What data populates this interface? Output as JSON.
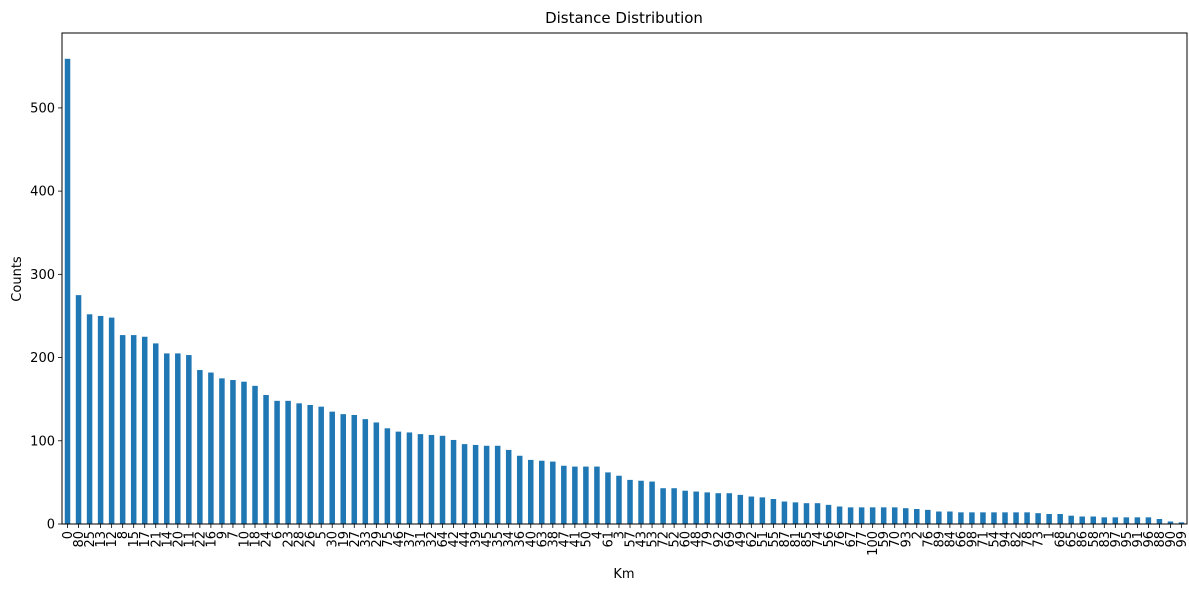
{
  "chart_data": {
    "type": "bar",
    "title": "Distance Distribution",
    "xlabel": "Km",
    "ylabel": "Counts",
    "ylim": [
      0,
      590
    ],
    "yticks": [
      0,
      100,
      200,
      300,
      400,
      500
    ],
    "grid": false,
    "legend": "none",
    "bar_color": "#1f77b4",
    "categories": [
      "0",
      "80",
      "25",
      "13",
      "12",
      "8",
      "15",
      "17",
      "21",
      "14",
      "20",
      "11",
      "22",
      "16",
      "9",
      "7",
      "10",
      "18",
      "24",
      "6",
      "23",
      "28",
      "26",
      "5",
      "30",
      "19",
      "27",
      "33",
      "29",
      "75",
      "46",
      "37",
      "31",
      "32",
      "64",
      "42",
      "44",
      "39",
      "45",
      "35",
      "34",
      "36",
      "40",
      "63",
      "38",
      "47",
      "41",
      "50",
      "4",
      "61",
      "3",
      "57",
      "43",
      "53",
      "72",
      "52",
      "60",
      "48",
      "79",
      "92",
      "69",
      "49",
      "62",
      "51",
      "55",
      "87",
      "81",
      "85",
      "74",
      "56",
      "76",
      "67",
      "77",
      "100",
      "59",
      "70",
      "93",
      "2",
      "76",
      "89",
      "84",
      "66",
      "98",
      "71",
      "54",
      "94",
      "82",
      "78",
      "73",
      "1",
      "68",
      "65",
      "86",
      "58",
      "83",
      "97",
      "95",
      "91",
      "96",
      "88",
      "90",
      "99"
    ],
    "values": [
      559,
      275,
      252,
      250,
      248,
      227,
      227,
      225,
      217,
      205,
      205,
      203,
      185,
      182,
      175,
      173,
      171,
      166,
      155,
      148,
      148,
      145,
      143,
      141,
      135,
      132,
      131,
      126,
      122,
      115,
      111,
      110,
      108,
      107,
      106,
      101,
      96,
      95,
      94,
      94,
      89,
      82,
      77,
      76,
      75,
      70,
      69,
      69,
      69,
      62,
      58,
      53,
      52,
      51,
      43,
      43,
      40,
      39,
      38,
      37,
      37,
      35,
      33,
      32,
      30,
      27,
      26,
      25,
      25,
      23,
      21,
      20,
      20,
      20,
      20,
      20,
      19,
      18,
      17,
      15,
      15,
      14,
      14,
      14,
      14,
      14,
      14,
      14,
      13,
      12,
      12,
      10,
      9,
      9,
      8,
      8,
      8,
      8,
      8,
      6,
      3,
      2
    ]
  }
}
